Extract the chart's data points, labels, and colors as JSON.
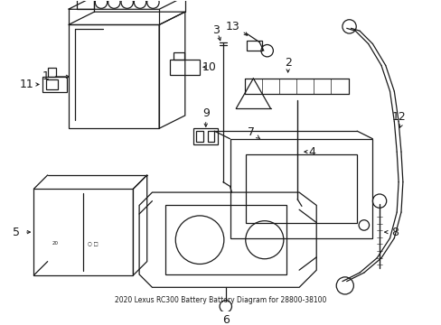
{
  "title": "2020 Lexus RC300 Battery Battery Diagram for 28800-38100",
  "bg_color": "#ffffff",
  "line_color": "#1a1a1a",
  "figsize": [
    4.89,
    3.6
  ],
  "dpi": 100
}
